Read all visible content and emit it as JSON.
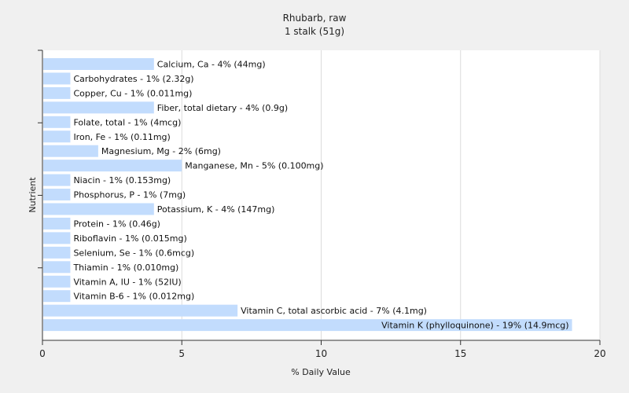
{
  "chart_data": {
    "type": "bar",
    "orientation": "horizontal",
    "title": "Rhubarb, raw",
    "subtitle": "1 stalk (51g)",
    "xlabel": "% Daily Value",
    "ylabel": "Nutrient",
    "xlim": [
      0,
      20
    ],
    "xticks": [
      "0",
      "5",
      "10",
      "15",
      "20"
    ],
    "grid": true,
    "categories": [
      "Calcium, Ca",
      "Carbohydrates",
      "Copper, Cu",
      "Fiber, total dietary",
      "Folate, total",
      "Iron, Fe",
      "Magnesium, Mg",
      "Manganese, Mn",
      "Niacin",
      "Phosphorus, P",
      "Potassium, K",
      "Protein",
      "Riboflavin",
      "Selenium, Se",
      "Thiamin",
      "Vitamin A, IU",
      "Vitamin B-6",
      "Vitamin C, total ascorbic acid",
      "Vitamin K (phylloquinone)"
    ],
    "values": [
      4,
      1,
      1,
      4,
      1,
      1,
      2,
      5,
      1,
      1,
      4,
      1,
      1,
      1,
      1,
      1,
      1,
      7,
      19
    ],
    "labels": [
      "Calcium, Ca - 4% (44mg)",
      "Carbohydrates - 1% (2.32g)",
      "Copper, Cu - 1% (0.011mg)",
      "Fiber, total dietary - 4% (0.9g)",
      "Folate, total - 1% (4mcg)",
      "Iron, Fe - 1% (0.11mg)",
      "Magnesium, Mg - 2% (6mg)",
      "Manganese, Mn - 5% (0.100mg)",
      "Niacin - 1% (0.153mg)",
      "Phosphorus, P - 1% (7mg)",
      "Potassium, K - 4% (147mg)",
      "Protein - 1% (0.46g)",
      "Riboflavin - 1% (0.015mg)",
      "Selenium, Se - 1% (0.6mcg)",
      "Thiamin - 1% (0.010mg)",
      "Vitamin A, IU - 1% (52IU)",
      "Vitamin B-6 - 1% (0.012mg)",
      "Vitamin C, total ascorbic acid - 7% (4.1mg)",
      "Vitamin K (phylloquinone) - 19% (14.9mcg)"
    ],
    "colors": {
      "bar": "#c2dcfd",
      "grid": "#dcdcdc",
      "axis": "#333333",
      "plot_bg": "#ffffff",
      "background": "#f0f0f0"
    }
  }
}
